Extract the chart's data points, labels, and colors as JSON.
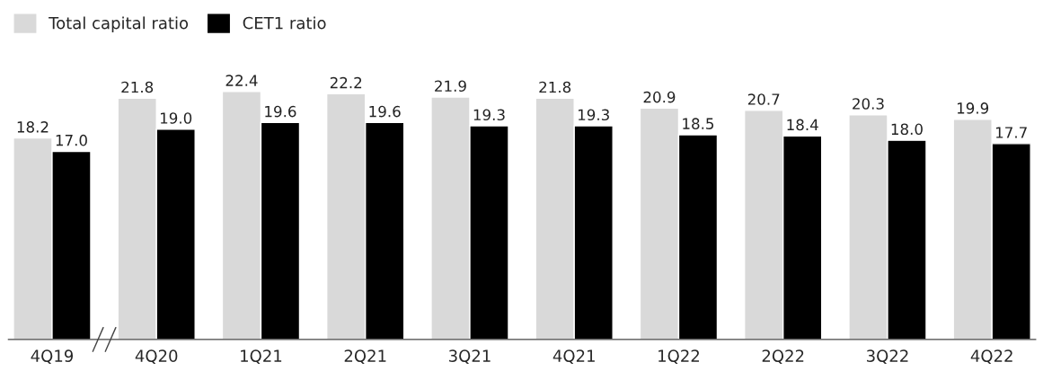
{
  "chart_data": {
    "type": "bar",
    "categories": [
      "4Q19",
      "4Q20",
      "1Q21",
      "2Q21",
      "3Q21",
      "4Q21",
      "1Q22",
      "2Q22",
      "3Q22",
      "4Q22"
    ],
    "series": [
      {
        "name": "Total capital ratio",
        "color": "#d9d9d9",
        "values": [
          18.2,
          21.8,
          22.4,
          22.2,
          21.9,
          21.8,
          20.9,
          20.7,
          20.3,
          19.9
        ],
        "value_labels": [
          "18.2",
          "21.8",
          "22.4",
          "22.2",
          "21.9",
          "21.8",
          "20.9",
          "20.7",
          "20.3",
          "19.9"
        ]
      },
      {
        "name": "CET1 ratio",
        "color": "#000000",
        "values": [
          17.0,
          19.0,
          19.6,
          19.6,
          19.3,
          19.3,
          18.5,
          18.4,
          18.0,
          17.7
        ],
        "value_labels": [
          "17.0",
          "19.0",
          "19.6",
          "19.6",
          "19.3",
          "19.3",
          "18.5",
          "18.4",
          "18.0",
          "17.7"
        ]
      }
    ],
    "legend": "top left",
    "grid": false,
    "tick_labels": "x"
  }
}
